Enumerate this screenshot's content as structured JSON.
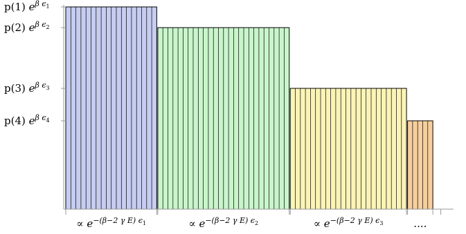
{
  "y_labels": [
    {
      "prefix": "p(1) ",
      "base": "e",
      "sup": "β ϵ",
      "sub": "1"
    },
    {
      "prefix": "p(2) ",
      "base": "e",
      "sup": "β ϵ",
      "sub": "2"
    },
    {
      "prefix": "p(3) ",
      "base": "e",
      "sup": "β ϵ",
      "sub": "3"
    },
    {
      "prefix": "p(4) ",
      "base": "e",
      "sup": "β ϵ",
      "sub": "4"
    }
  ],
  "x_labels": [
    {
      "prefix": "∝ ",
      "base": "e",
      "sup": "−(β−2 γ E) ϵ",
      "sub": "1"
    },
    {
      "prefix": "∝ ",
      "base": "e",
      "sup": "−(β−2 γ E) ϵ",
      "sub": "2"
    },
    {
      "prefix": "∝ ",
      "base": "e",
      "sup": "−(β−2 γ E) ϵ",
      "sub": "3"
    },
    {
      "prefix": "",
      "base": "....",
      "sup": "",
      "sub": ""
    }
  ],
  "blocks": [
    {
      "level": 1,
      "stripes": 18,
      "fill": "#c6cdf0",
      "stroke": "#000000"
    },
    {
      "level": 2,
      "stripes": 26,
      "fill": "#c9f5cb",
      "stroke": "#000000"
    },
    {
      "level": 3,
      "stripes": 23,
      "fill": "#fbf4b7",
      "stroke": "#000000"
    },
    {
      "level": 4,
      "stripes": 5,
      "fill": "#f7cf9e",
      "stroke": "#000000"
    }
  ]
}
